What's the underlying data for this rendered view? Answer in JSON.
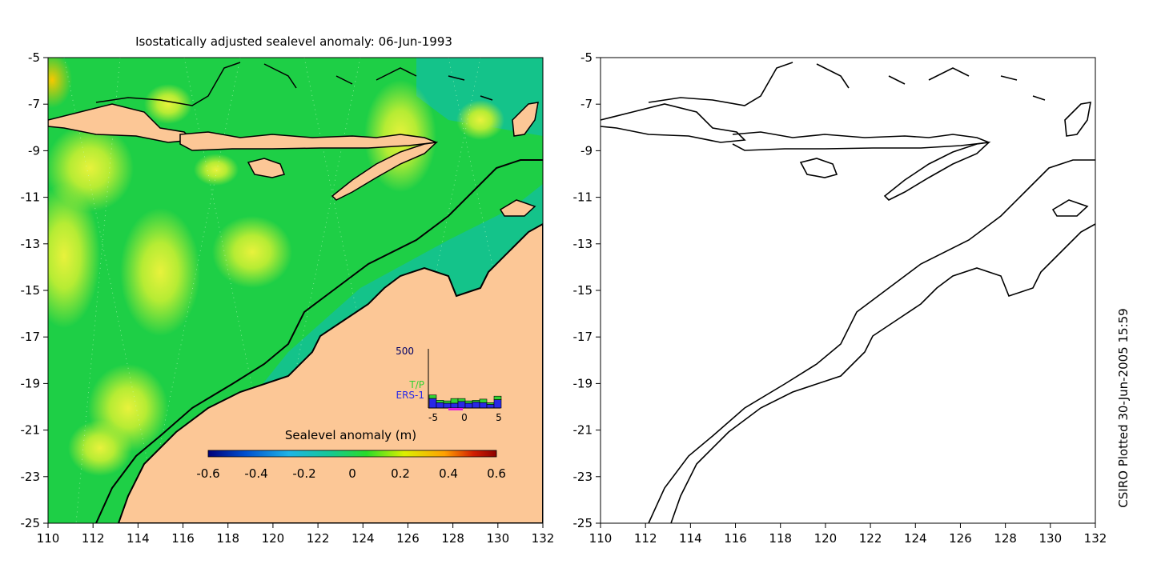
{
  "title": "Isostatically adjusted sealevel anomaly: 06-Jun-1993",
  "credit": "CSIRO Plotted 30-Jun-2005 15:59",
  "x_ticks": [
    "110",
    "112",
    "114",
    "116",
    "118",
    "120",
    "122",
    "124",
    "126",
    "128",
    "130",
    "132"
  ],
  "y_ticks": [
    "-5",
    "-7",
    "-9",
    "-11",
    "-13",
    "-15",
    "-17",
    "-19",
    "-21",
    "-23",
    "-25"
  ],
  "colorbar": {
    "label": "Sealevel anomaly (m)",
    "ticks": [
      "-0.6",
      "-0.4",
      "-0.2",
      "0",
      "0.2",
      "0.4",
      "0.6"
    ],
    "colors": [
      "#00007a",
      "#0050d0",
      "#1eb4e6",
      "#14c896",
      "#28dc28",
      "#dcf000",
      "#ffa000",
      "#d21e00",
      "#8c0000"
    ]
  },
  "inset": {
    "ymax_label": "500",
    "x_ticks": [
      "-5",
      "0",
      "5"
    ],
    "legend": [
      {
        "label": "T/P",
        "color": "#32d232"
      },
      {
        "label": "ERS-1",
        "color": "#2828e6"
      }
    ],
    "tp": [
      110,
      65,
      60,
      80,
      80,
      60,
      65,
      75,
      45,
      100
    ],
    "ers": [
      80,
      45,
      40,
      40,
      55,
      40,
      50,
      45,
      30,
      70
    ]
  },
  "colors": {
    "land": "#fcc796",
    "ocean_base": "#1ecf46",
    "shelf": "#14c38a",
    "high": "#b4ec32",
    "peak": "#e6f03c",
    "coast": "#000000"
  }
}
